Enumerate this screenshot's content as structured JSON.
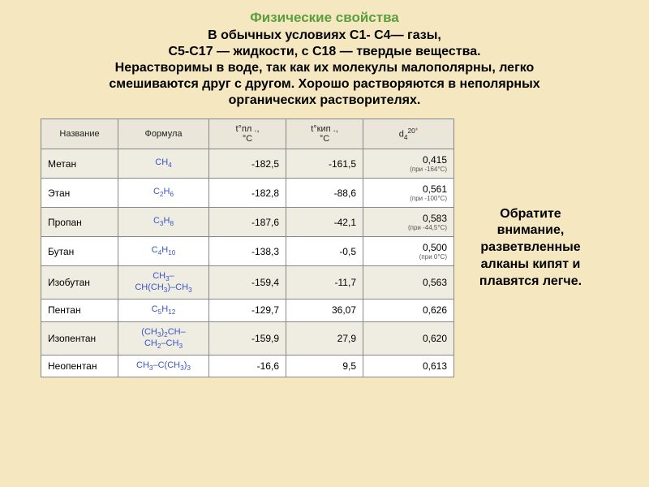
{
  "title": "Физические свойства",
  "desc_lines": [
    "В обычных условиях С1- С4— газы,",
    "С5-С17 — жидкости, с С18 — твердые вещества.",
    "Нерастворимы в воде, так как их молекулы малополярны, легко",
    "смешиваются друг с другом. Хорошо растворяются в неполярных",
    "органических растворителях."
  ],
  "columns": {
    "name": "Название",
    "formula": "Формула",
    "tpl_prefix": "t°пл .,",
    "tpl_unit": "°С",
    "tkip_prefix": "t°кип .,",
    "tkip_unit": "°С",
    "dens_prefix": "d",
    "dens_sub": "4",
    "dens_sup": "20"
  },
  "rows": [
    {
      "name": "Метан",
      "formula_html": "CH<sub>4</sub>",
      "tpl": "-182,5",
      "tkip": "-161,5",
      "dens": "0,415",
      "note": "(при -164°С)"
    },
    {
      "name": "Этан",
      "formula_html": "C<sub>2</sub>H<sub>6</sub>",
      "tpl": "-182,8",
      "tkip": "-88,6",
      "dens": "0,561",
      "note": "(при -100°С)"
    },
    {
      "name": "Пропан",
      "formula_html": "C<sub>3</sub>H<sub>8</sub>",
      "tpl": "-187,6",
      "tkip": "-42,1",
      "dens": "0,583",
      "note": "(при -44,5°С)"
    },
    {
      "name": "Бутан",
      "formula_html": "C<sub>4</sub>H<sub>10</sub>",
      "tpl": "-138,3",
      "tkip": "-0,5",
      "dens": "0,500",
      "note": "(при 0°С)"
    },
    {
      "name": "Изобутан",
      "formula_html": "CH<sub>3</sub>–<br>CH(CH<sub>3</sub>)–CH<sub>3</sub>",
      "tpl": "-159,4",
      "tkip": "-11,7",
      "dens": "0,563",
      "note": ""
    },
    {
      "name": "Пентан",
      "formula_html": "C<sub>5</sub>H<sub>12</sub>",
      "tpl": "-129,7",
      "tkip": "36,07",
      "dens": "0,626",
      "note": ""
    },
    {
      "name": "Изопентан",
      "formula_html": "(CH<sub>3</sub>)<sub>2</sub>CH–<br>CH<sub>2</sub>–CH<sub>3</sub>",
      "tpl": "-159,9",
      "tkip": "27,9",
      "dens": "0,620",
      "note": ""
    },
    {
      "name": "Неопентан",
      "formula_html": "CH<sub>3</sub>–C(CH<sub>3</sub>)<sub>3</sub>",
      "tpl": "-16,6",
      "tkip": "9,5",
      "dens": "0,613",
      "note": ""
    }
  ],
  "side_note": "Обратите внимание, разветвленные алканы кипят и плавятся легче.",
  "colors": {
    "background": "#f5e8c0",
    "title": "#5a9e3e",
    "formula": "#3a55c9",
    "border": "#888888",
    "header_bg": "#eae6da",
    "row_odd": "#efece1",
    "row_even": "#ffffff",
    "star": "#c94b3a"
  },
  "typography": {
    "title_fontsize": 17,
    "desc_fontsize": 16,
    "table_fontsize": 12,
    "header_fontsize": 11,
    "side_fontsize": 16
  }
}
